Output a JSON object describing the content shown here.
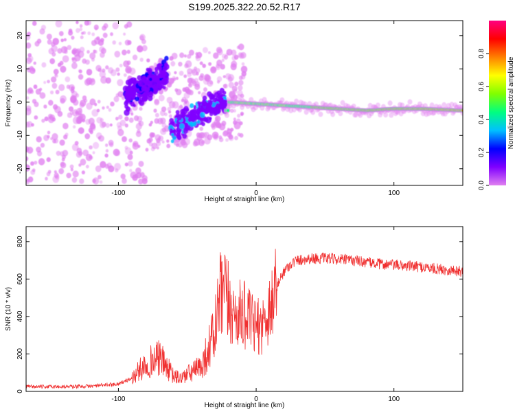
{
  "page_title": "S199.2025.322.20.52.R17",
  "chart_data": [
    {
      "type": "heatmap",
      "title": "S199.2025.322.20.52.R17",
      "xlabel": "Height of straight line (km)",
      "ylabel": "Frequency (Hz)",
      "xlim": [
        -167,
        150
      ],
      "ylim": [
        -25,
        24.5
      ],
      "xticks": [
        -100,
        0,
        100
      ],
      "yticks": [
        -20,
        -10,
        0,
        10,
        20
      ],
      "colorbar": {
        "label": "Normalized spectral amplitude",
        "range": [
          0.0,
          1.0
        ],
        "ticks": [
          0.0,
          0.2,
          0.4,
          0.6,
          0.8
        ],
        "colors": [
          "#e080f0",
          "#8000ff",
          "#0000ff",
          "#00c0ff",
          "#00ff80",
          "#80ff00",
          "#ffff00",
          "#ff8000",
          "#ff0000",
          "#ff0080"
        ]
      },
      "ridge": {
        "x": [
          -20,
          0,
          20,
          40,
          60,
          80,
          100,
          120,
          150
        ],
        "y": [
          0,
          -0.5,
          -1,
          -1.5,
          -2,
          -2.5,
          -2,
          -2,
          -2.5
        ]
      }
    },
    {
      "type": "line",
      "xlabel": "Height of straight line (km)",
      "ylabel": "SNR (10 * v/v)",
      "xlim": [
        -167,
        150
      ],
      "ylim": [
        0,
        880
      ],
      "xticks": [
        -100,
        0,
        100
      ],
      "yticks": [
        0,
        200,
        400,
        600,
        800
      ],
      "series": [
        {
          "name": "SNR",
          "color": "#f03030",
          "x": [
            -167,
            -140,
            -120,
            -100,
            -90,
            -80,
            -70,
            -65,
            -60,
            -55,
            -50,
            -40,
            -35,
            -30,
            -28,
            -26,
            -24,
            -20,
            -15,
            -10,
            -5,
            0,
            5,
            10,
            15,
            20,
            25,
            30,
            40,
            50,
            60,
            70,
            80,
            90,
            100,
            110,
            120,
            130,
            140,
            150
          ],
          "y": [
            25,
            25,
            28,
            40,
            70,
            150,
            180,
            130,
            80,
            70,
            90,
            130,
            220,
            320,
            420,
            480,
            520,
            450,
            400,
            420,
            380,
            340,
            360,
            450,
            560,
            640,
            680,
            700,
            710,
            710,
            705,
            700,
            690,
            680,
            675,
            670,
            665,
            655,
            648,
            640
          ]
        }
      ]
    }
  ]
}
